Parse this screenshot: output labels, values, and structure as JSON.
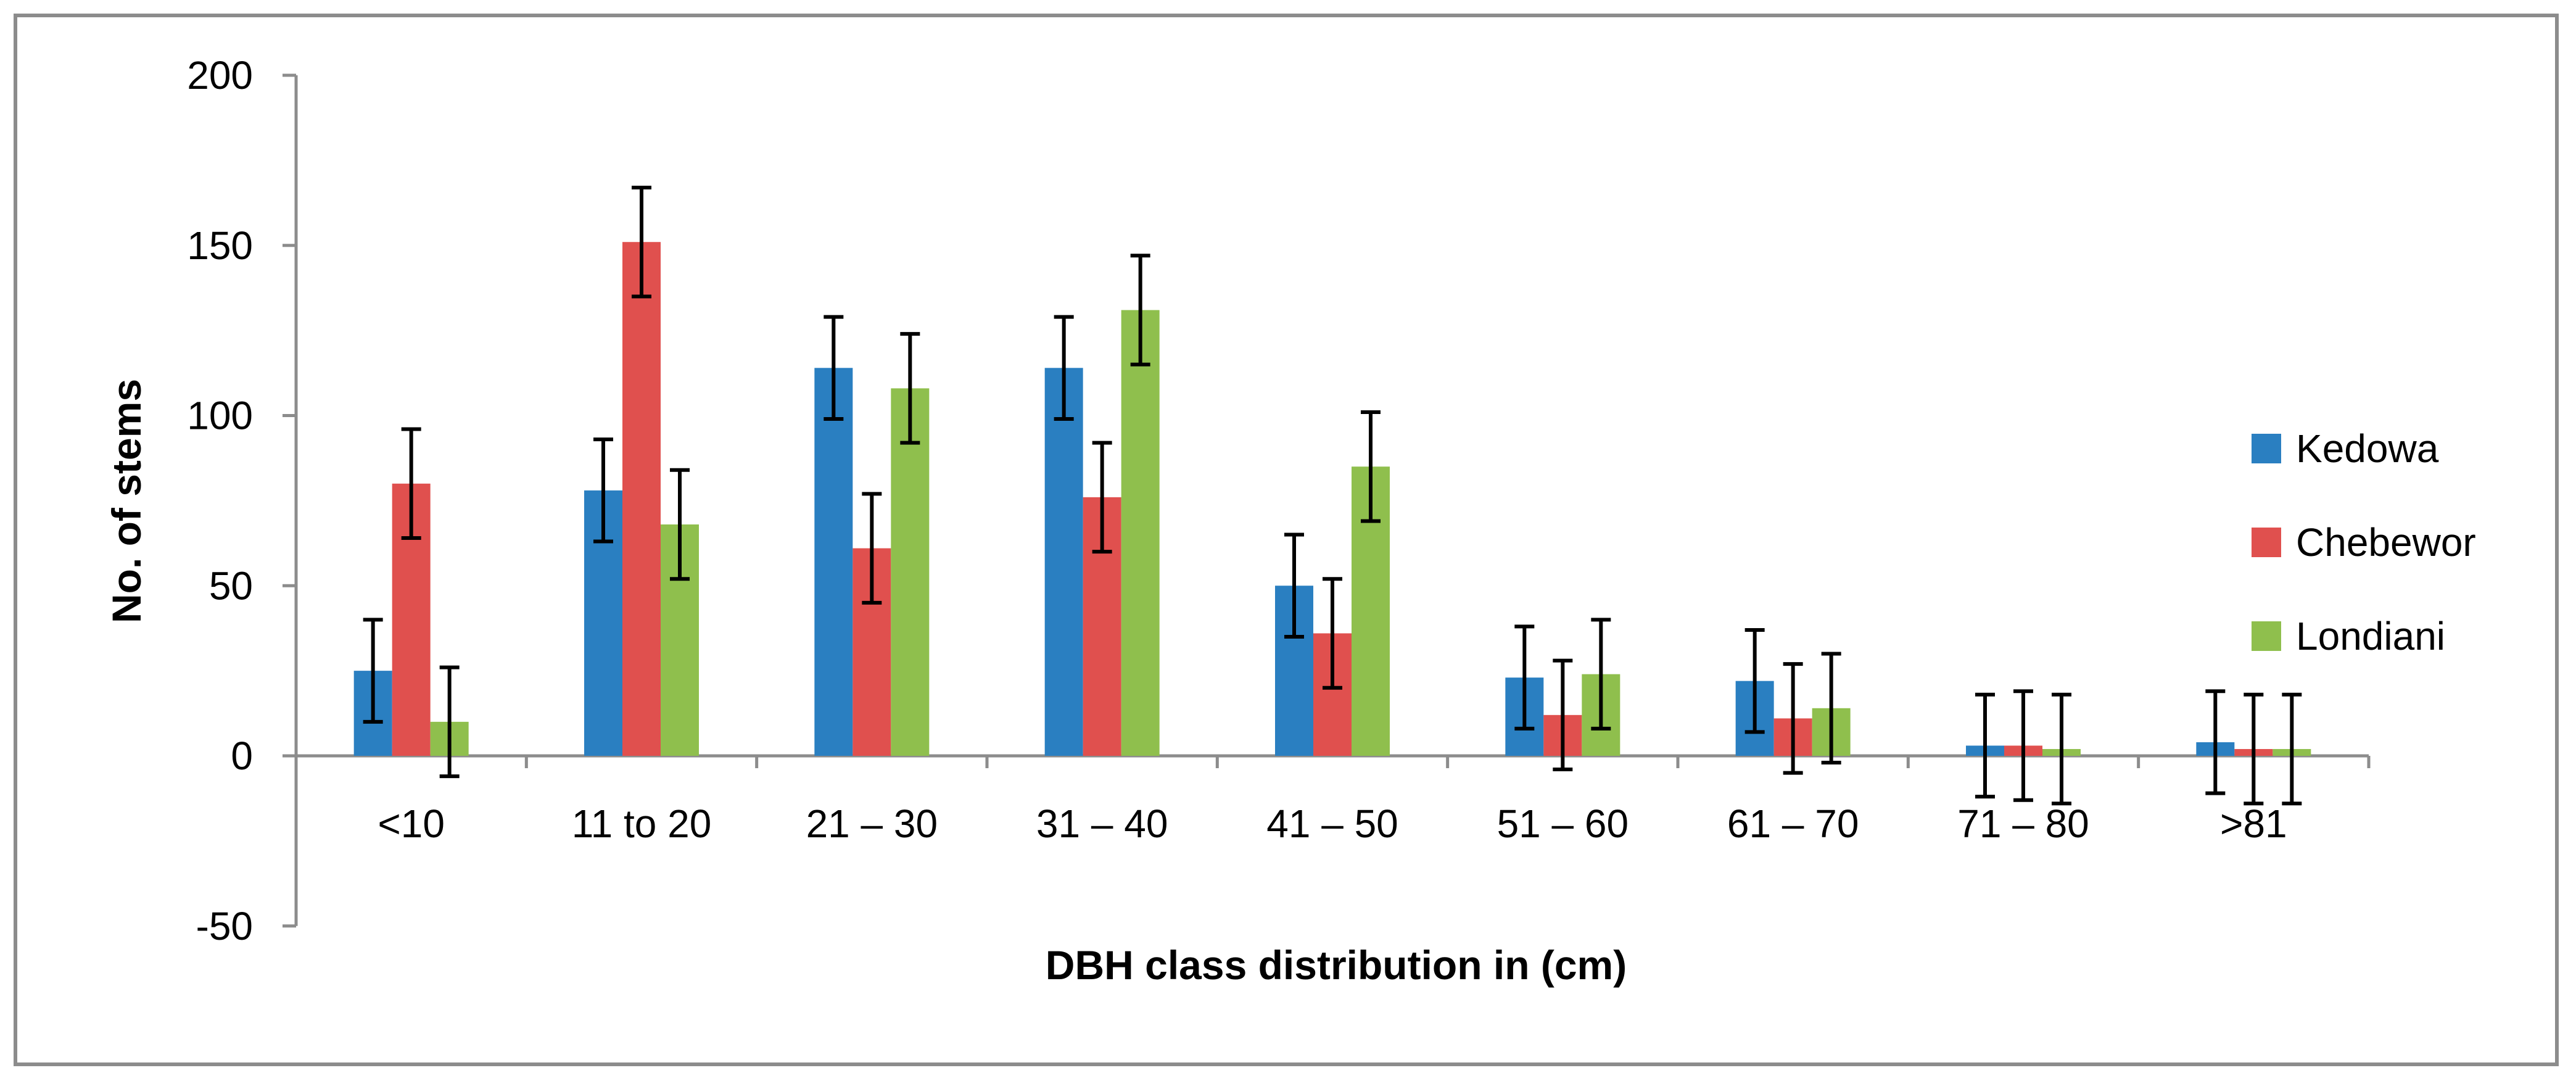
{
  "chart_data": {
    "type": "bar",
    "title": "",
    "xlabel": "DBH class distribution in (cm)",
    "ylabel": "No. of stems",
    "ylim": [
      -50,
      200
    ],
    "yticks": [
      -50,
      0,
      50,
      100,
      150,
      200
    ],
    "yticks_labels": [
      "-50",
      "0",
      "50",
      "100",
      "150",
      "200"
    ],
    "grid": false,
    "legend_position": "right",
    "categories": [
      "<10",
      "11 to 20",
      "21 – 30",
      "31 – 40",
      "41 – 50",
      "51 – 60",
      "61 – 70",
      "71 – 80",
      ">81"
    ],
    "series": [
      {
        "name": "Kedowa",
        "color": "#2a7fc1",
        "values": [
          25,
          78,
          114,
          114,
          50,
          23,
          22,
          3,
          4
        ],
        "errors": [
          15,
          15,
          15,
          15,
          15,
          15,
          15,
          15,
          15
        ]
      },
      {
        "name": "Chebewor",
        "color": "#e0504e",
        "values": [
          80,
          151,
          61,
          76,
          36,
          12,
          11,
          3,
          2
        ],
        "errors": [
          16,
          16,
          16,
          16,
          16,
          16,
          16,
          16,
          16
        ]
      },
      {
        "name": "Londiani",
        "color": "#8fbf4d",
        "values": [
          10,
          68,
          108,
          131,
          85,
          24,
          14,
          2,
          2
        ],
        "errors": [
          16,
          16,
          16,
          16,
          16,
          16,
          16,
          16,
          16
        ]
      }
    ]
  }
}
